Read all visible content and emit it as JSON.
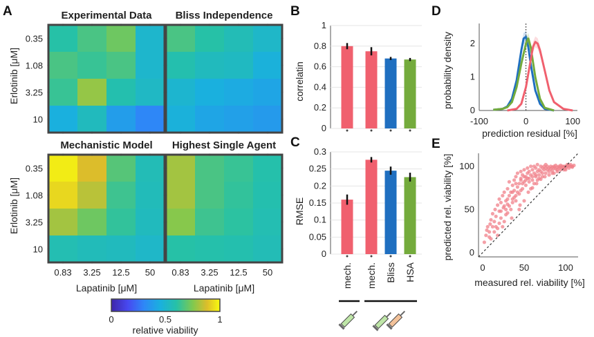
{
  "panels": {
    "A": "A",
    "B": "B",
    "C": "C",
    "D": "D",
    "E": "E"
  },
  "chart_data": [
    {
      "type": "heatmap",
      "panel": "A",
      "ylabel": "Erlotinib [μM]",
      "xlabel": "Lapatinib [μM]",
      "y_categories": [
        "0.35",
        "1.08",
        "3.25",
        "10"
      ],
      "x_categories": [
        "0.83",
        "3.25",
        "12.5",
        "50"
      ],
      "colorbar": {
        "label": "relative viability",
        "ticks": [
          "0",
          "0.5",
          "1"
        ],
        "range": [
          0,
          1
        ]
      },
      "maps": [
        {
          "title": "Experimental Data",
          "title_color": "#111111",
          "values": [
            [
              0.6,
              0.66,
              0.72,
              0.5
            ],
            [
              0.66,
              0.63,
              0.66,
              0.5
            ],
            [
              0.63,
              0.78,
              0.58,
              0.52
            ],
            [
              0.45,
              0.54,
              0.38,
              0.3
            ]
          ]
        },
        {
          "title": "Bliss Independence",
          "title_color": "#1f77c4",
          "values": [
            [
              0.66,
              0.6,
              0.56,
              0.51
            ],
            [
              0.58,
              0.54,
              0.53,
              0.46
            ],
            [
              0.49,
              0.45,
              0.43,
              0.41
            ],
            [
              0.46,
              0.41,
              0.39,
              0.37
            ]
          ]
        },
        {
          "title": "Mechanistic Model",
          "title_color": "#e8566a",
          "values": [
            [
              0.97,
              0.88,
              0.68,
              0.56
            ],
            [
              0.93,
              0.83,
              0.64,
              0.55
            ],
            [
              0.8,
              0.72,
              0.62,
              0.54
            ],
            [
              0.57,
              0.55,
              0.54,
              0.51
            ]
          ]
        },
        {
          "title": "Highest Single Agent",
          "title_color": "#6fa83c",
          "values": [
            [
              0.8,
              0.66,
              0.63,
              0.59
            ],
            [
              0.8,
              0.66,
              0.62,
              0.58
            ],
            [
              0.76,
              0.64,
              0.61,
              0.57
            ],
            [
              0.6,
              0.59,
              0.58,
              0.56
            ]
          ]
        }
      ]
    },
    {
      "type": "bar",
      "panel": "B",
      "ylabel": "correlatin",
      "ylim": [
        0,
        1
      ],
      "yticks": [
        "0",
        "0.2",
        "0.4",
        "0.6",
        "0.8",
        "1"
      ],
      "categories": [
        "mech.",
        "mech.",
        "Bliss",
        "HSA"
      ],
      "values": [
        0.8,
        0.75,
        0.68,
        0.67
      ],
      "errors": [
        0.03,
        0.04,
        0.015,
        0.015
      ],
      "colors": [
        "#f0606e",
        "#f0606e",
        "#1f6fc0",
        "#74ab3c"
      ]
    },
    {
      "type": "bar",
      "panel": "C",
      "ylabel": "RMSE",
      "ylim": [
        0,
        0.3
      ],
      "yticks": [
        "0",
        "0.05",
        "0.1",
        "0.15",
        "0.2",
        "0.25",
        "0.3"
      ],
      "categories": [
        "mech.",
        "mech.",
        "Bliss",
        "HSA"
      ],
      "values": [
        0.16,
        0.277,
        0.245,
        0.226
      ],
      "errors": [
        0.015,
        0.008,
        0.012,
        0.013
      ],
      "colors": [
        "#f0606e",
        "#f0606e",
        "#1f6fc0",
        "#74ab3c"
      ]
    },
    {
      "type": "line",
      "panel": "D",
      "ylabel": "probability density",
      "xlabel": "prediction residual [%]",
      "xlim": [
        -100,
        110
      ],
      "ylim": [
        0,
        2.6
      ],
      "xticks": [
        "-100",
        "0",
        "100"
      ],
      "yticks": [
        "0",
        "1",
        "2"
      ],
      "series": [
        {
          "color": "#1f6fc0",
          "x": [
            -70,
            -50,
            -40,
            -30,
            -20,
            -10,
            -5,
            0,
            5,
            10,
            20,
            30,
            40,
            60
          ],
          "y": [
            0.02,
            0.05,
            0.12,
            0.35,
            0.9,
            1.8,
            2.15,
            2.2,
            1.9,
            1.4,
            0.6,
            0.2,
            0.05,
            0.0
          ]
        },
        {
          "color": "#74ab3c",
          "x": [
            -70,
            -50,
            -40,
            -30,
            -20,
            -10,
            0,
            5,
            10,
            20,
            30,
            40,
            60
          ],
          "y": [
            0.02,
            0.05,
            0.1,
            0.25,
            0.7,
            1.4,
            2.0,
            2.15,
            1.9,
            1.0,
            0.35,
            0.08,
            0.0
          ]
        },
        {
          "color": "#f0606e",
          "x": [
            -40,
            -20,
            -10,
            0,
            10,
            15,
            20,
            25,
            30,
            40,
            50,
            60,
            80,
            100
          ],
          "y": [
            0.0,
            0.05,
            0.2,
            0.7,
            1.5,
            1.9,
            2.05,
            2.0,
            1.8,
            1.2,
            0.6,
            0.25,
            0.05,
            0.0
          ]
        }
      ]
    },
    {
      "type": "scatter",
      "panel": "E",
      "ylabel": "predicted rel. viability [%]",
      "xlabel": "measured rel. viability [%]",
      "xlim": [
        -5,
        115
      ],
      "ylim": [
        -5,
        115
      ],
      "xticks": [
        "0",
        "50",
        "100"
      ],
      "yticks": [
        "0",
        "50",
        "100"
      ],
      "color": "#f0808a",
      "points": [
        [
          2,
          12
        ],
        [
          4,
          20
        ],
        [
          5,
          26
        ],
        [
          6,
          30
        ],
        [
          8,
          24
        ],
        [
          9,
          33
        ],
        [
          10,
          38
        ],
        [
          12,
          30
        ],
        [
          12,
          45
        ],
        [
          14,
          36
        ],
        [
          15,
          50
        ],
        [
          16,
          42
        ],
        [
          18,
          55
        ],
        [
          18,
          28
        ],
        [
          20,
          48
        ],
        [
          20,
          62
        ],
        [
          22,
          40
        ],
        [
          22,
          58
        ],
        [
          24,
          66
        ],
        [
          25,
          52
        ],
        [
          26,
          70
        ],
        [
          28,
          44
        ],
        [
          28,
          60
        ],
        [
          30,
          74
        ],
        [
          30,
          56
        ],
        [
          32,
          66
        ],
        [
          32,
          82
        ],
        [
          34,
          50
        ],
        [
          34,
          70
        ],
        [
          36,
          78
        ],
        [
          36,
          62
        ],
        [
          38,
          84
        ],
        [
          38,
          72
        ],
        [
          40,
          88
        ],
        [
          40,
          66
        ],
        [
          42,
          76
        ],
        [
          42,
          92
        ],
        [
          44,
          80
        ],
        [
          44,
          68
        ],
        [
          46,
          86
        ],
        [
          46,
          94
        ],
        [
          48,
          74
        ],
        [
          48,
          90
        ],
        [
          50,
          82
        ],
        [
          50,
          96
        ],
        [
          52,
          88
        ],
        [
          52,
          78
        ],
        [
          54,
          92
        ],
        [
          54,
          98
        ],
        [
          56,
          86
        ],
        [
          56,
          94
        ],
        [
          58,
          90
        ],
        [
          58,
          100
        ],
        [
          60,
          84
        ],
        [
          60,
          96
        ],
        [
          62,
          92
        ],
        [
          62,
          100
        ],
        [
          64,
          88
        ],
        [
          64,
          98
        ],
        [
          66,
          94
        ],
        [
          66,
          102
        ],
        [
          68,
          96
        ],
        [
          68,
          90
        ],
        [
          70,
          100
        ],
        [
          70,
          94
        ],
        [
          72,
          98
        ],
        [
          72,
          92
        ],
        [
          74,
          100
        ],
        [
          74,
          96
        ],
        [
          76,
          98
        ],
        [
          76,
          102
        ],
        [
          78,
          96
        ],
        [
          78,
          100
        ],
        [
          80,
          98
        ],
        [
          80,
          94
        ],
        [
          82,
          100
        ],
        [
          82,
          97
        ],
        [
          84,
          99
        ],
        [
          84,
          95
        ],
        [
          86,
          100
        ],
        [
          86,
          98
        ],
        [
          88,
          97
        ],
        [
          88,
          101
        ],
        [
          90,
          99
        ],
        [
          90,
          96
        ],
        [
          92,
          100
        ],
        [
          92,
          98
        ],
        [
          94,
          99
        ],
        [
          94,
          101
        ],
        [
          96,
          100
        ],
        [
          96,
          98
        ],
        [
          98,
          100
        ],
        [
          98,
          99
        ],
        [
          100,
          100
        ],
        [
          100,
          98
        ],
        [
          102,
          100
        ],
        [
          104,
          101
        ],
        [
          106,
          100
        ],
        [
          108,
          100
        ],
        [
          110,
          101
        ],
        [
          35,
          40
        ],
        [
          45,
          55
        ],
        [
          55,
          70
        ],
        [
          60,
          75
        ],
        [
          65,
          80
        ],
        [
          70,
          85
        ],
        [
          75,
          88
        ],
        [
          80,
          90
        ],
        [
          40,
          60
        ],
        [
          30,
          46
        ],
        [
          26,
          36
        ],
        [
          24,
          30
        ],
        [
          18,
          20
        ],
        [
          14,
          24
        ],
        [
          10,
          16
        ],
        [
          8,
          18
        ],
        [
          50,
          60
        ],
        [
          44,
          50
        ],
        [
          58,
          74
        ],
        [
          62,
          80
        ],
        [
          66,
          84
        ],
        [
          86,
          92
        ],
        [
          90,
          94
        ],
        [
          94,
          96
        ],
        [
          20,
          34
        ],
        [
          16,
          30
        ],
        [
          28,
          50
        ],
        [
          32,
          54
        ],
        [
          36,
          58
        ],
        [
          38,
          64
        ],
        [
          42,
          70
        ],
        [
          46,
          72
        ],
        [
          48,
          80
        ],
        [
          52,
          84
        ],
        [
          56,
          82
        ],
        [
          64,
          90
        ],
        [
          68,
          86
        ],
        [
          72,
          88
        ],
        [
          76,
          92
        ],
        [
          84,
          92
        ],
        [
          60,
          88
        ],
        [
          54,
          86
        ],
        [
          50,
          88
        ],
        [
          46,
          84
        ],
        [
          40,
          80
        ],
        [
          36,
          70
        ],
        [
          30,
          62
        ],
        [
          26,
          54
        ],
        [
          22,
          48
        ],
        [
          100,
          96
        ],
        [
          104,
          98
        ],
        [
          108,
          99
        ],
        [
          106,
          102
        ],
        [
          102,
          102
        ],
        [
          98,
          96
        ]
      ]
    }
  ]
}
